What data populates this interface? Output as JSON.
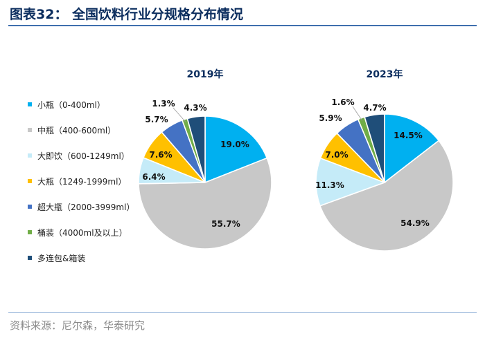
{
  "header": {
    "title": "图表32：  全国饮料行业分规格分布情况"
  },
  "footer": {
    "source": "资料来源：尼尔森，华泰研究"
  },
  "chart_data": {
    "type": "pie",
    "categories": [
      "小瓶（0-400ml）",
      "中瓶（400-600ml）",
      "大即饮（600-1249ml）",
      "大瓶（1249-1999ml）",
      "超大瓶（2000-3999ml）",
      "桶装（4000ml及以上）",
      "多连包&箱装"
    ],
    "colors": [
      "#00b0f0",
      "#c8c8c8",
      "#c5ebf8",
      "#ffc000",
      "#4472c4",
      "#70ad47",
      "#1f4e79"
    ],
    "series": [
      {
        "name": "2019年",
        "values": [
          19.0,
          55.7,
          6.4,
          7.6,
          5.7,
          1.3,
          4.3
        ],
        "labels": [
          "19.0%",
          "55.7%",
          "6.4%",
          "7.6%",
          "5.7%",
          "1.3%",
          "4.3%"
        ]
      },
      {
        "name": "2023年",
        "values": [
          14.5,
          54.9,
          11.3,
          7.0,
          5.9,
          1.6,
          4.7
        ],
        "labels": [
          "14.5%",
          "54.9%",
          "11.3%",
          "7.0%",
          "5.9%",
          "1.6%",
          "4.7%"
        ]
      }
    ],
    "legend": "left"
  }
}
